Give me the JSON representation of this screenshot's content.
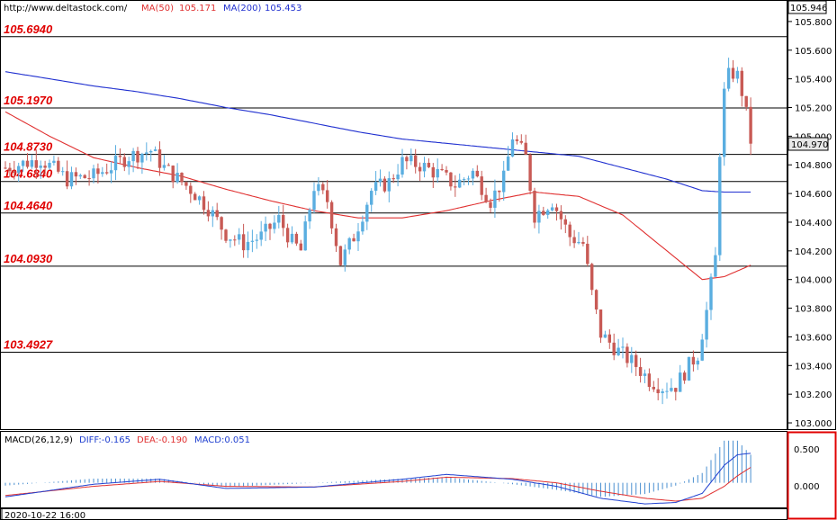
{
  "header": {
    "site": "http://www.deltastock.com/",
    "ma50_label": "MA(50)",
    "ma50_value": "105.171",
    "ma200_label": "MA(200)",
    "ma200_value": "105.453",
    "top_price": "105.946"
  },
  "current_price": "104.970",
  "colors": {
    "up": "#5aaee0",
    "down": "#c85a55",
    "ma50": "#e03030",
    "ma200": "#2030d0",
    "level_text": "#e00000",
    "macd_diff": "#2040d0",
    "macd_dea": "#e03030",
    "macd_hist": "#4a8fd0"
  },
  "macd": {
    "label": "MACD(26,12,9)",
    "diff": "DIFF:-0.165",
    "dea": "DEA:-0.190",
    "macd": "MACD:0.051",
    "ticks": [
      "0.500",
      "0.000"
    ]
  },
  "date_label": "2020-10-22 16:00",
  "chart_data": {
    "type": "candlestick",
    "y_range": [
      102.95,
      105.95
    ],
    "y_ticks": [
      "105.800",
      "105.600",
      "105.400",
      "105.200",
      "105.000",
      "104.800",
      "104.600",
      "104.400",
      "104.200",
      "104.000",
      "103.800",
      "103.600",
      "103.400",
      "103.200",
      "103.000"
    ],
    "levels": [
      {
        "label": "105.6940",
        "value": 105.694
      },
      {
        "label": "105.1970",
        "value": 105.197
      },
      {
        "label": "104.8730",
        "value": 104.873
      },
      {
        "label": "104.6840",
        "value": 104.684
      },
      {
        "label": "104.4640",
        "value": 104.464
      },
      {
        "label": "104.0930",
        "value": 104.093
      },
      {
        "label": "103.4927",
        "value": 103.4927
      }
    ],
    "close_anchors": [
      [
        0,
        104.78
      ],
      [
        8,
        104.84
      ],
      [
        14,
        104.7
      ],
      [
        20,
        104.72
      ],
      [
        28,
        104.86
      ],
      [
        33,
        104.9
      ],
      [
        36,
        104.78
      ],
      [
        42,
        104.63
      ],
      [
        46,
        104.5
      ],
      [
        50,
        104.32
      ],
      [
        54,
        104.25
      ],
      [
        58,
        104.3
      ],
      [
        62,
        104.42
      ],
      [
        65,
        104.26
      ],
      [
        67,
        104.2
      ],
      [
        70,
        104.65
      ],
      [
        73,
        104.55
      ],
      [
        76,
        104.12
      ],
      [
        79,
        104.3
      ],
      [
        83,
        104.62
      ],
      [
        87,
        104.68
      ],
      [
        90,
        104.82
      ],
      [
        94,
        104.8
      ],
      [
        98,
        104.74
      ],
      [
        102,
        104.66
      ],
      [
        106,
        104.75
      ],
      [
        110,
        104.55
      ],
      [
        113,
        104.7
      ],
      [
        115,
        105.0
      ],
      [
        118,
        104.85
      ],
      [
        120,
        104.45
      ],
      [
        124,
        104.55
      ],
      [
        128,
        104.3
      ],
      [
        131,
        104.25
      ],
      [
        133,
        103.9
      ],
      [
        135,
        103.62
      ],
      [
        139,
        103.5
      ],
      [
        143,
        103.4
      ],
      [
        146,
        103.3
      ],
      [
        149,
        103.25
      ],
      [
        152,
        103.26
      ],
      [
        155,
        103.4
      ],
      [
        157,
        103.48
      ],
      [
        159,
        103.78
      ],
      [
        161,
        104.15
      ],
      [
        162,
        104.9
      ],
      [
        163,
        105.3
      ],
      [
        164,
        105.42
      ],
      [
        165,
        105.44
      ],
      [
        166,
        105.42
      ],
      [
        167,
        105.31
      ],
      [
        168,
        105.15
      ],
      [
        169,
        104.97
      ]
    ],
    "ma50": [
      [
        0,
        105.17
      ],
      [
        10,
        105.0
      ],
      [
        20,
        104.85
      ],
      [
        30,
        104.78
      ],
      [
        40,
        104.72
      ],
      [
        50,
        104.63
      ],
      [
        60,
        104.55
      ],
      [
        70,
        104.48
      ],
      [
        80,
        104.43
      ],
      [
        90,
        104.43
      ],
      [
        100,
        104.48
      ],
      [
        110,
        104.55
      ],
      [
        120,
        104.61
      ],
      [
        130,
        104.58
      ],
      [
        140,
        104.45
      ],
      [
        150,
        104.2
      ],
      [
        158,
        104.0
      ],
      [
        163,
        104.02
      ],
      [
        169,
        104.1
      ]
    ],
    "ma200": [
      [
        0,
        105.45
      ],
      [
        10,
        105.4
      ],
      [
        20,
        105.35
      ],
      [
        30,
        105.31
      ],
      [
        40,
        105.26
      ],
      [
        50,
        105.2
      ],
      [
        60,
        105.15
      ],
      [
        70,
        105.09
      ],
      [
        80,
        105.03
      ],
      [
        90,
        104.98
      ],
      [
        100,
        104.95
      ],
      [
        110,
        104.92
      ],
      [
        120,
        104.89
      ],
      [
        130,
        104.86
      ],
      [
        140,
        104.78
      ],
      [
        150,
        104.7
      ],
      [
        158,
        104.62
      ],
      [
        163,
        104.61
      ],
      [
        169,
        104.61
      ]
    ],
    "macd_range": [
      -0.35,
      0.7
    ],
    "macd_diff_anchors": [
      [
        0,
        -0.2
      ],
      [
        20,
        -0.02
      ],
      [
        35,
        0.05
      ],
      [
        50,
        -0.08
      ],
      [
        70,
        -0.06
      ],
      [
        90,
        0.05
      ],
      [
        100,
        0.12
      ],
      [
        115,
        0.05
      ],
      [
        125,
        -0.05
      ],
      [
        135,
        -0.22
      ],
      [
        145,
        -0.3
      ],
      [
        152,
        -0.28
      ],
      [
        158,
        -0.15
      ],
      [
        163,
        0.25
      ],
      [
        166,
        0.4
      ],
      [
        169,
        0.42
      ]
    ],
    "macd_dea_anchors": [
      [
        0,
        -0.18
      ],
      [
        20,
        -0.05
      ],
      [
        35,
        0.02
      ],
      [
        50,
        -0.05
      ],
      [
        70,
        -0.06
      ],
      [
        90,
        0.02
      ],
      [
        100,
        0.08
      ],
      [
        115,
        0.06
      ],
      [
        125,
        0.0
      ],
      [
        135,
        -0.12
      ],
      [
        145,
        -0.22
      ],
      [
        152,
        -0.26
      ],
      [
        158,
        -0.22
      ],
      [
        163,
        -0.05
      ],
      [
        166,
        0.1
      ],
      [
        169,
        0.22
      ]
    ]
  }
}
